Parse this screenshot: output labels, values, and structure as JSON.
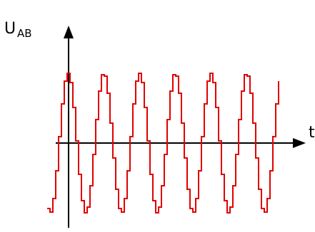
{
  "chart_data": {
    "type": "line",
    "ylabel_main": "U",
    "ylabel_sub": "AB",
    "xlabel": "t",
    "series": [
      {
        "color": "#e00000",
        "cycles": 6.5,
        "x_start_phase_deg": 250,
        "amplitude": 1
      }
    ],
    "ylim": [
      -1.45,
      2.3
    ],
    "grid": false,
    "legend": "none",
    "axis_color": "#000000"
  }
}
